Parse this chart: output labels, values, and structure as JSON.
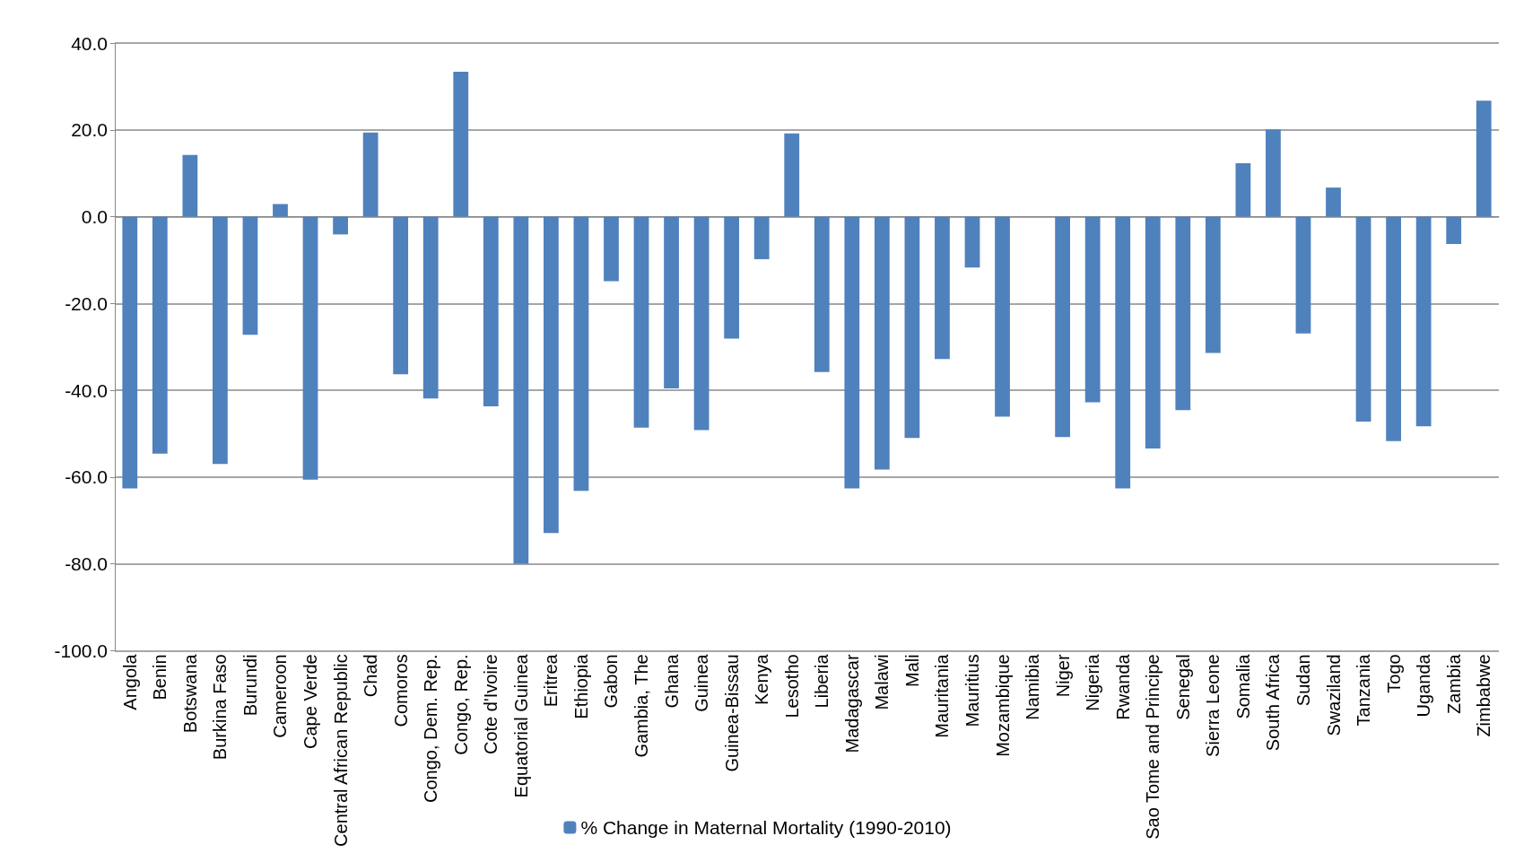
{
  "chart_data": {
    "type": "bar",
    "categories": [
      "Angola",
      "Benin",
      "Botswana",
      "Burkina Faso",
      "Burundi",
      "Cameroon",
      "Cape Verde",
      "Central African Republic",
      "Chad",
      "Comoros",
      "Congo, Dem. Rep.",
      "Congo, Rep.",
      "Cote d'Ivoire",
      "Equatorial Guinea",
      "Eritrea",
      "Ethiopia",
      "Gabon",
      "Gambia, The",
      "Ghana",
      "Guinea",
      "Guinea-Bissau",
      "Kenya",
      "Lesotho",
      "Liberia",
      "Madagascar",
      "Malawi",
      "Mali",
      "Mauritania",
      "Mauritius",
      "Mozambique",
      "Namibia",
      "Niger",
      "Nigeria",
      "Rwanda",
      "Sao Tome and Principe",
      "Senegal",
      "Sierra Leone",
      "Somalia",
      "South Africa",
      "Sudan",
      "Swaziland",
      "Tanzania",
      "Togo",
      "Uganda",
      "Zambia",
      "Zimbabwe"
    ],
    "series": [
      {
        "name": "% Change in Maternal Mortality (1990-2010)",
        "color": "#4f81bd",
        "values": [
          -62.6,
          -54.6,
          14.2,
          -57.0,
          -27.2,
          2.9,
          -60.6,
          -4.1,
          19.4,
          -36.3,
          -41.9,
          33.4,
          -43.7,
          -80.0,
          -72.9,
          -63.2,
          -14.9,
          -48.6,
          -39.6,
          -49.2,
          -28.1,
          -9.8,
          19.2,
          -35.8,
          -62.6,
          -58.3,
          -51.0,
          -32.8,
          -11.7,
          -46.1,
          0,
          -50.8,
          -42.8,
          -62.6,
          -53.4,
          -44.6,
          -31.4,
          12.3,
          20.1,
          -26.9,
          6.7,
          -47.2,
          -51.7,
          -48.3,
          -6.3,
          26.7
        ]
      }
    ],
    "ylim": [
      -100,
      40
    ],
    "yticks": [
      {
        "value": -100,
        "label": "-100.0"
      },
      {
        "value": -80,
        "label": "-80.0"
      },
      {
        "value": -60,
        "label": "-60.0"
      },
      {
        "value": -40,
        "label": "-40.0"
      },
      {
        "value": -20,
        "label": "-20.0"
      },
      {
        "value": 0,
        "label": "0.0"
      },
      {
        "value": 20,
        "label": "20.0"
      },
      {
        "value": 40,
        "label": "40.0"
      }
    ],
    "grid": "y",
    "legend": "bottom"
  }
}
